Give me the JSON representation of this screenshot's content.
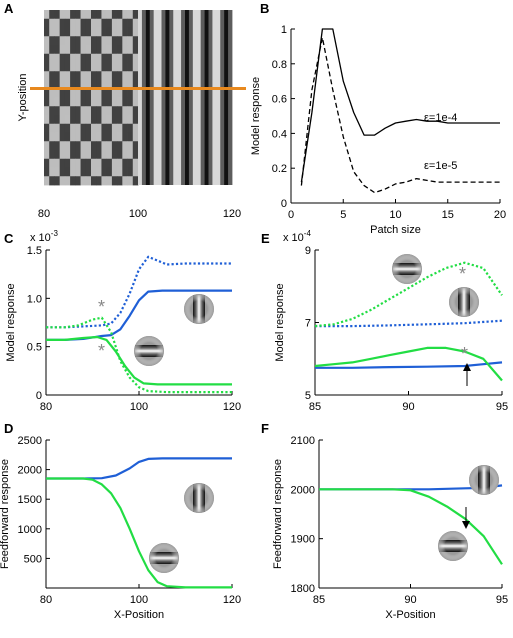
{
  "colors": {
    "blue": "#1f5fd6",
    "green": "#22dd44",
    "orange": "#e8891e",
    "black": "#000000",
    "star": "#888888"
  },
  "icons": {
    "vertical": "vertical-grating-patch-icon",
    "horizontal": "horizontal-grating-patch-icon"
  },
  "chart_data": [
    {
      "panel": "A",
      "type": "image",
      "xlabel": "",
      "ylabel": "Y-position",
      "x_ticks": [
        "80",
        "100",
        "120"
      ],
      "xlim": [
        80,
        120
      ],
      "stimulus": "checkerboard plaid (80-100) beside vertical grating (100-120)",
      "marker_line": {
        "color": "orange",
        "y_fraction": 0.5
      }
    },
    {
      "panel": "B",
      "type": "line",
      "xlabel": "Patch size",
      "ylabel": "Model response",
      "xlim": [
        0,
        20
      ],
      "ylim": [
        0,
        1
      ],
      "x_ticks": [
        "0",
        "5",
        "10",
        "15",
        "20"
      ],
      "y_ticks": [
        "0",
        "0.2",
        "0.4",
        "0.6",
        "0.8",
        "1"
      ],
      "series": [
        {
          "name": "ε=1e-4",
          "style": "solid",
          "x": [
            1,
            2,
            3,
            4,
            5,
            6,
            7,
            8,
            9,
            10,
            11,
            12,
            13,
            14,
            15,
            16,
            17,
            18,
            19,
            20
          ],
          "y": [
            0.12,
            0.52,
            1.0,
            1.0,
            0.7,
            0.52,
            0.39,
            0.39,
            0.43,
            0.46,
            0.47,
            0.48,
            0.47,
            0.47,
            0.46,
            0.46,
            0.46,
            0.46,
            0.46,
            0.46
          ]
        },
        {
          "name": "ε=1e-5",
          "style": "dashed",
          "x": [
            1,
            2,
            3,
            4,
            5,
            6,
            7,
            8,
            9,
            10,
            11,
            12,
            13,
            14,
            15,
            16,
            17,
            18,
            19,
            20
          ],
          "y": [
            0.1,
            0.65,
            0.95,
            0.65,
            0.38,
            0.18,
            0.1,
            0.06,
            0.08,
            0.11,
            0.12,
            0.14,
            0.13,
            0.12,
            0.12,
            0.12,
            0.12,
            0.12,
            0.12,
            0.12
          ]
        }
      ],
      "annotations": [
        "ε=1e-4",
        "ε=1e-5"
      ]
    },
    {
      "panel": "C",
      "type": "line",
      "xlabel": "",
      "ylabel": "Model response",
      "multiplier": "x 10",
      "multiplier_exp": "-3",
      "xlim": [
        80,
        120
      ],
      "ylim": [
        0,
        1.5
      ],
      "x_ticks": [
        "80",
        "100",
        "120"
      ],
      "y_ticks": [
        "0",
        "0.5",
        "1.0",
        "1.5"
      ],
      "series": [
        {
          "color": "blue",
          "style": "solid",
          "x": [
            80,
            84,
            88,
            92,
            94,
            96,
            98,
            100,
            102,
            105,
            110,
            115,
            120
          ],
          "y": [
            0.57,
            0.57,
            0.58,
            0.61,
            0.62,
            0.68,
            0.82,
            0.98,
            1.07,
            1.08,
            1.08,
            1.08,
            1.08
          ]
        },
        {
          "color": "blue",
          "style": "dotted",
          "x": [
            80,
            84,
            88,
            92,
            94,
            96,
            98,
            100,
            102,
            104,
            106,
            110,
            115,
            120
          ],
          "y": [
            0.7,
            0.7,
            0.71,
            0.72,
            0.74,
            0.85,
            1.05,
            1.3,
            1.43,
            1.39,
            1.35,
            1.36,
            1.36,
            1.36
          ]
        },
        {
          "color": "green",
          "style": "solid",
          "x": [
            80,
            84,
            88,
            91,
            93,
            95,
            97,
            99,
            101,
            104,
            108,
            112,
            116,
            120
          ],
          "y": [
            0.57,
            0.57,
            0.59,
            0.6,
            0.57,
            0.45,
            0.3,
            0.18,
            0.12,
            0.11,
            0.11,
            0.11,
            0.11,
            0.11
          ]
        },
        {
          "color": "green",
          "style": "dotted",
          "x": [
            80,
            84,
            87,
            90,
            92,
            94,
            96,
            98,
            100,
            102,
            106,
            110,
            115,
            120
          ],
          "y": [
            0.7,
            0.7,
            0.72,
            0.78,
            0.8,
            0.65,
            0.35,
            0.18,
            0.08,
            0.04,
            0.03,
            0.03,
            0.03,
            0.03
          ]
        }
      ]
    },
    {
      "panel": "D",
      "type": "line",
      "xlabel": "X-Position",
      "ylabel": "Feedforward response",
      "xlim": [
        80,
        120
      ],
      "ylim": [
        0,
        2500
      ],
      "x_ticks": [
        "80",
        "100",
        "120"
      ],
      "y_ticks": [
        "500",
        "1000",
        "1500",
        "2000",
        "2500"
      ],
      "series": [
        {
          "color": "blue",
          "style": "solid",
          "x": [
            80,
            88,
            92,
            95,
            98,
            100,
            102,
            105,
            110,
            115,
            120
          ],
          "y": [
            1850,
            1850,
            1855,
            1900,
            2020,
            2130,
            2180,
            2190,
            2190,
            2190,
            2190
          ]
        },
        {
          "color": "green",
          "style": "solid",
          "x": [
            80,
            88,
            90,
            92,
            94,
            96,
            98,
            100,
            102,
            104,
            106,
            110,
            115,
            120
          ],
          "y": [
            1850,
            1850,
            1830,
            1750,
            1600,
            1350,
            1000,
            620,
            300,
            100,
            30,
            10,
            10,
            10
          ]
        }
      ]
    },
    {
      "panel": "E",
      "type": "line",
      "xlabel": "",
      "ylabel": "Model response",
      "multiplier": "x 10",
      "multiplier_exp": "-4",
      "xlim": [
        85,
        95
      ],
      "ylim": [
        5,
        9
      ],
      "x_ticks": [
        "85",
        "90",
        "95"
      ],
      "y_ticks": [
        "5",
        "7",
        "9"
      ],
      "series": [
        {
          "color": "blue",
          "style": "solid",
          "x": [
            85,
            87,
            89,
            91,
            93,
            94,
            95
          ],
          "y": [
            5.75,
            5.75,
            5.77,
            5.78,
            5.8,
            5.85,
            5.9
          ]
        },
        {
          "color": "blue",
          "style": "dotted",
          "x": [
            85,
            87,
            89,
            91,
            93,
            95
          ],
          "y": [
            6.9,
            6.9,
            6.92,
            6.95,
            6.98,
            7.05
          ]
        },
        {
          "color": "green",
          "style": "solid",
          "x": [
            85,
            86,
            87,
            88,
            89,
            90,
            91,
            92,
            93,
            94,
            95
          ],
          "y": [
            5.8,
            5.85,
            5.9,
            6.0,
            6.1,
            6.2,
            6.3,
            6.3,
            6.2,
            6.0,
            5.4
          ]
        },
        {
          "color": "green",
          "style": "dotted",
          "x": [
            85,
            86,
            87,
            88,
            89,
            90,
            91,
            92,
            93,
            94,
            95
          ],
          "y": [
            6.9,
            6.95,
            7.1,
            7.35,
            7.65,
            7.95,
            8.25,
            8.5,
            8.65,
            8.5,
            7.75
          ]
        }
      ]
    },
    {
      "panel": "F",
      "type": "line",
      "xlabel": "X-Position",
      "ylabel": "Feedforward response",
      "xlim": [
        85,
        95
      ],
      "ylim": [
        1800,
        2100
      ],
      "x_ticks": [
        "85",
        "90",
        "95"
      ],
      "y_ticks": [
        "1800",
        "1900",
        "2000",
        "2100"
      ],
      "series": [
        {
          "color": "blue",
          "style": "solid",
          "x": [
            85,
            87,
            89,
            91,
            93,
            94,
            95
          ],
          "y": [
            2000,
            2000,
            2000,
            2000,
            2002,
            2003,
            2008
          ]
        },
        {
          "color": "green",
          "style": "solid",
          "x": [
            85,
            87,
            89,
            90,
            91,
            92,
            93,
            94,
            95
          ],
          "y": [
            2000,
            2000,
            2000,
            1998,
            1985,
            1965,
            1940,
            1905,
            1848
          ]
        }
      ]
    }
  ]
}
